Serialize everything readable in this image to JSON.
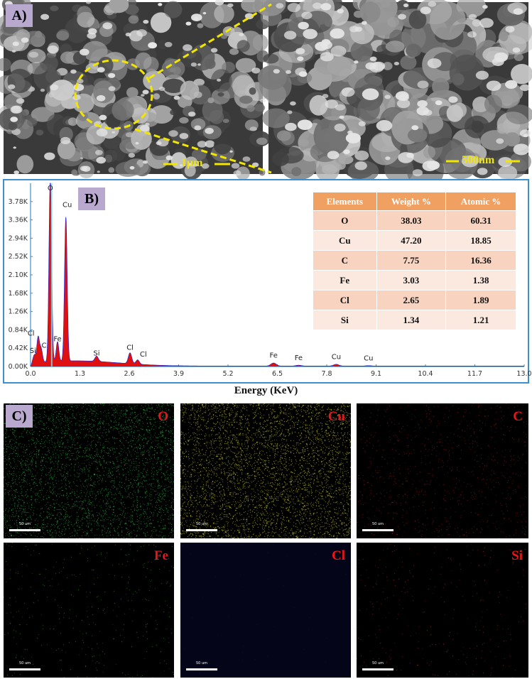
{
  "panels": {
    "a": "A)",
    "b": "B)",
    "c": "C)"
  },
  "sem": {
    "left_scale": "1μm",
    "right_scale": "500nm"
  },
  "chart_data": {
    "type": "line",
    "xlabel": "Energy (KeV)",
    "ylabel": "",
    "xlim": [
      0.0,
      13.0
    ],
    "ylim": [
      0.0,
      4.2
    ],
    "x_ticks": [
      "0.0",
      "1.3",
      "2.6",
      "3.9",
      "5.2",
      "6.5",
      "7.8",
      "9.1",
      "10.4",
      "11.7",
      "13.0"
    ],
    "y_ticks": [
      "0.00K",
      "0.42K",
      "0.84K",
      "1.26K",
      "1.68K",
      "2.10K",
      "2.52K",
      "2.94K",
      "3.36K",
      "3.78K"
    ],
    "y_tick_values": [
      0.0,
      0.42,
      0.84,
      1.26,
      1.68,
      2.1,
      2.52,
      2.94,
      3.36,
      3.78
    ],
    "x_tick_values": [
      0.0,
      1.3,
      2.6,
      3.9,
      5.2,
      6.5,
      7.8,
      9.1,
      10.4,
      11.7,
      13.0
    ],
    "peaks": [
      {
        "label": "Si",
        "x": 0.1,
        "y": 0.18
      },
      {
        "label": "C",
        "x": 0.28,
        "y": 0.3
      },
      {
        "label": "Cl",
        "x": 0.2,
        "y": 0.58
      },
      {
        "label": "O",
        "x": 0.52,
        "y": 4.2
      },
      {
        "label": "Fe",
        "x": 0.71,
        "y": 0.45
      },
      {
        "label": "Cu",
        "x": 0.93,
        "y": 3.3
      },
      {
        "label": "Si",
        "x": 1.74,
        "y": 0.12
      },
      {
        "label": "Cl",
        "x": 2.62,
        "y": 0.25
      },
      {
        "label": "Cl",
        "x": 2.82,
        "y": 0.1
      },
      {
        "label": "Fe",
        "x": 6.4,
        "y": 0.07
      },
      {
        "label": "Fe",
        "x": 7.06,
        "y": 0.02
      },
      {
        "label": "Cu",
        "x": 8.05,
        "y": 0.04
      },
      {
        "label": "Cu",
        "x": 8.9,
        "y": 0.01
      }
    ]
  },
  "composition_table": {
    "headers": [
      "Elements",
      "Weight %",
      "Atomic %"
    ],
    "rows": [
      [
        "O",
        "38.03",
        "60.31"
      ],
      [
        "Cu",
        "47.20",
        "18.85"
      ],
      [
        "C",
        "7.75",
        "16.36"
      ],
      [
        "Fe",
        "3.03",
        "1.38"
      ],
      [
        "Cl",
        "2.65",
        "1.89"
      ],
      [
        "Si",
        "1.34",
        "1.21"
      ]
    ]
  },
  "maps": [
    {
      "element": "O",
      "color": "#2fa84a",
      "density": 0.5
    },
    {
      "element": "Cu",
      "color": "#c8c83a",
      "density": 0.55
    },
    {
      "element": "C",
      "color": "#8a1e1e",
      "density": 0.12
    },
    {
      "element": "Fe",
      "color": "#3c8a2c",
      "density": 0.04
    },
    {
      "element": "Cl",
      "color": "#14143c",
      "density": 0.0
    },
    {
      "element": "Si",
      "color": "#9a2a2a",
      "density": 0.03
    }
  ],
  "map_scale": "50 um"
}
